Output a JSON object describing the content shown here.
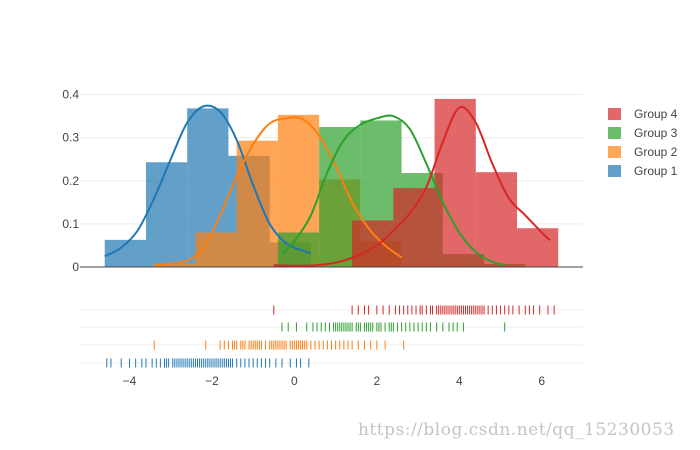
{
  "chart_data": {
    "type": "histogram",
    "title": "",
    "xlabel": "",
    "ylabel": "",
    "xlim": [
      -5.2,
      7.0
    ],
    "ylim": [
      0,
      0.42
    ],
    "x_ticks": [
      -4,
      -2,
      0,
      2,
      4,
      6
    ],
    "y_ticks": [
      0,
      0.1,
      0.2,
      0.3,
      0.4
    ],
    "grid": true,
    "legend_position": "top-right",
    "panels": [
      "histogram with density curves",
      "rug plot"
    ],
    "series": [
      {
        "name": "Group 1",
        "color": "#1f77b4",
        "bins": [
          {
            "x0": -4.6,
            "x1": -3.6,
            "value": 0.063
          },
          {
            "x0": -3.6,
            "x1": -2.6,
            "value": 0.243
          },
          {
            "x0": -2.6,
            "x1": -1.6,
            "value": 0.368
          },
          {
            "x0": -1.6,
            "x1": -0.6,
            "value": 0.258
          },
          {
            "x0": -0.6,
            "x1": 0.4,
            "value": 0.057
          }
        ],
        "curve": [
          [
            -4.6,
            0.025
          ],
          [
            -4.2,
            0.045
          ],
          [
            -3.8,
            0.085
          ],
          [
            -3.4,
            0.16
          ],
          [
            -3.0,
            0.25
          ],
          [
            -2.6,
            0.335
          ],
          [
            -2.2,
            0.373
          ],
          [
            -1.8,
            0.36
          ],
          [
            -1.4,
            0.295
          ],
          [
            -1.0,
            0.19
          ],
          [
            -0.6,
            0.1
          ],
          [
            -0.2,
            0.055
          ],
          [
            0.2,
            0.038
          ],
          [
            0.4,
            0.032
          ]
        ],
        "rug": [
          -4.55,
          -4.45,
          -4.2,
          -4.0,
          -3.85,
          -3.7,
          -3.6,
          -3.45,
          -3.35,
          -3.25,
          -3.15,
          -3.1,
          -3.05,
          -2.95,
          -2.9,
          -2.85,
          -2.8,
          -2.75,
          -2.7,
          -2.65,
          -2.6,
          -2.55,
          -2.5,
          -2.45,
          -2.4,
          -2.35,
          -2.3,
          -2.25,
          -2.2,
          -2.15,
          -2.1,
          -2.05,
          -2.0,
          -1.95,
          -1.9,
          -1.85,
          -1.8,
          -1.75,
          -1.7,
          -1.65,
          -1.6,
          -1.55,
          -1.5,
          -1.4,
          -1.3,
          -1.2,
          -1.1,
          -1.0,
          -0.9,
          -0.8,
          -0.7,
          -0.6,
          -0.45,
          -0.3,
          -0.1,
          0.05,
          0.15,
          0.35
        ]
      },
      {
        "name": "Group 2",
        "color": "#ff7f0e",
        "bins": [
          {
            "x0": -3.4,
            "x1": -2.4,
            "value": 0.007
          },
          {
            "x0": -2.4,
            "x1": -1.4,
            "value": 0.08
          },
          {
            "x0": -1.4,
            "x1": -0.4,
            "value": 0.293
          },
          {
            "x0": -0.4,
            "x1": 0.6,
            "value": 0.353
          },
          {
            "x0": 0.6,
            "x1": 1.6,
            "value": 0.203
          },
          {
            "x0": 1.6,
            "x1": 2.6,
            "value": 0.06
          }
        ],
        "curve": [
          [
            -3.4,
            0.005
          ],
          [
            -3.0,
            0.008
          ],
          [
            -2.6,
            0.015
          ],
          [
            -2.2,
            0.045
          ],
          [
            -1.8,
            0.12
          ],
          [
            -1.4,
            0.21
          ],
          [
            -1.0,
            0.285
          ],
          [
            -0.6,
            0.333
          ],
          [
            -0.2,
            0.345
          ],
          [
            0.2,
            0.343
          ],
          [
            0.6,
            0.305
          ],
          [
            1.0,
            0.235
          ],
          [
            1.4,
            0.15
          ],
          [
            1.8,
            0.09
          ],
          [
            2.2,
            0.05
          ],
          [
            2.6,
            0.022
          ]
        ],
        "rug": [
          -3.4,
          -2.15,
          -1.8,
          -1.7,
          -1.6,
          -1.5,
          -1.45,
          -1.4,
          -1.3,
          -1.25,
          -1.2,
          -1.1,
          -1.05,
          -1.0,
          -0.95,
          -0.9,
          -0.85,
          -0.8,
          -0.7,
          -0.6,
          -0.55,
          -0.5,
          -0.45,
          -0.4,
          -0.35,
          -0.3,
          -0.25,
          -0.2,
          -0.1,
          -0.05,
          0.0,
          0.05,
          0.1,
          0.15,
          0.2,
          0.25,
          0.3,
          0.4,
          0.5,
          0.6,
          0.7,
          0.8,
          0.9,
          1.0,
          1.1,
          1.2,
          1.3,
          1.4,
          1.55,
          1.7,
          1.85,
          2.0,
          2.2,
          2.65
        ]
      },
      {
        "name": "Group 3",
        "color": "#2ca02c",
        "bins": [
          {
            "x0": -0.4,
            "x1": 0.6,
            "value": 0.08
          },
          {
            "x0": 0.6,
            "x1": 1.6,
            "value": 0.325
          },
          {
            "x0": 1.6,
            "x1": 2.6,
            "value": 0.34
          },
          {
            "x0": 2.6,
            "x1": 3.6,
            "value": 0.218
          },
          {
            "x0": 3.6,
            "x1": 4.6,
            "value": 0.03
          },
          {
            "x0": 4.6,
            "x1": 5.6,
            "value": 0.007
          }
        ],
        "curve": [
          [
            -0.3,
            0.03
          ],
          [
            0.0,
            0.06
          ],
          [
            0.4,
            0.12
          ],
          [
            0.8,
            0.22
          ],
          [
            1.2,
            0.295
          ],
          [
            1.6,
            0.33
          ],
          [
            2.0,
            0.345
          ],
          [
            2.4,
            0.35
          ],
          [
            2.8,
            0.32
          ],
          [
            3.2,
            0.24
          ],
          [
            3.6,
            0.15
          ],
          [
            4.0,
            0.08
          ],
          [
            4.4,
            0.035
          ],
          [
            4.8,
            0.012
          ],
          [
            5.1,
            0.005
          ]
        ],
        "rug": [
          -0.3,
          -0.15,
          0.05,
          0.3,
          0.45,
          0.55,
          0.65,
          0.75,
          0.85,
          0.95,
          1.0,
          1.05,
          1.1,
          1.15,
          1.2,
          1.25,
          1.3,
          1.35,
          1.4,
          1.5,
          1.55,
          1.6,
          1.7,
          1.75,
          1.8,
          1.85,
          1.9,
          2.0,
          2.05,
          2.1,
          2.2,
          2.3,
          2.35,
          2.4,
          2.5,
          2.6,
          2.7,
          2.8,
          2.9,
          3.0,
          3.1,
          3.2,
          3.3,
          3.45,
          3.6,
          3.75,
          3.85,
          3.95,
          4.1,
          5.1
        ]
      },
      {
        "name": "Group 4",
        "color": "#d62728",
        "bins": [
          {
            "x0": 1.4,
            "x1": 2.4,
            "value": 0.108
          },
          {
            "x0": 2.4,
            "x1": 3.4,
            "value": 0.183
          },
          {
            "x0": 3.4,
            "x1": 4.4,
            "value": 0.39
          },
          {
            "x0": 4.4,
            "x1": 5.4,
            "value": 0.22
          },
          {
            "x0": 5.4,
            "x1": 6.4,
            "value": 0.09
          }
        ],
        "curve": [
          [
            -0.5,
            0.004
          ],
          [
            0.0,
            0.003
          ],
          [
            0.5,
            0.004
          ],
          [
            1.0,
            0.01
          ],
          [
            1.5,
            0.025
          ],
          [
            2.0,
            0.05
          ],
          [
            2.4,
            0.085
          ],
          [
            2.8,
            0.125
          ],
          [
            3.2,
            0.185
          ],
          [
            3.6,
            0.29
          ],
          [
            4.0,
            0.37
          ],
          [
            4.4,
            0.335
          ],
          [
            4.8,
            0.24
          ],
          [
            5.2,
            0.16
          ],
          [
            5.6,
            0.12
          ],
          [
            6.0,
            0.08
          ],
          [
            6.2,
            0.062
          ]
        ],
        "rug": [
          -0.5,
          1.4,
          1.55,
          1.7,
          1.8,
          2.0,
          2.15,
          2.3,
          2.45,
          2.55,
          2.65,
          2.75,
          2.85,
          2.95,
          3.05,
          3.1,
          3.2,
          3.3,
          3.35,
          3.45,
          3.5,
          3.55,
          3.6,
          3.65,
          3.7,
          3.75,
          3.8,
          3.85,
          3.9,
          3.95,
          4.0,
          4.05,
          4.1,
          4.15,
          4.2,
          4.25,
          4.3,
          4.35,
          4.4,
          4.45,
          4.5,
          4.55,
          4.6,
          4.7,
          4.8,
          4.9,
          5.0,
          5.1,
          5.2,
          5.3,
          5.45,
          5.6,
          5.7,
          5.8,
          5.95,
          6.15,
          6.3
        ]
      }
    ]
  },
  "legend": {
    "items": [
      {
        "label": "Group 4",
        "color": "#d62728"
      },
      {
        "label": "Group 3",
        "color": "#2ca02c"
      },
      {
        "label": "Group 2",
        "color": "#ff7f0e"
      },
      {
        "label": "Group 1",
        "color": "#1f77b4"
      }
    ]
  },
  "watermark": "https://blog.csdn.net/qq_15230053"
}
